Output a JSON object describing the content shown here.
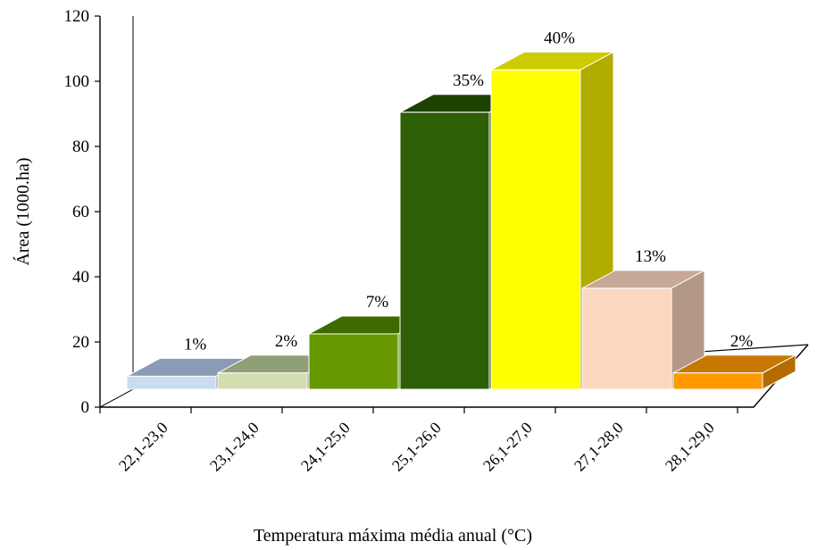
{
  "chart_data": {
    "type": "bar",
    "title": "",
    "xlabel": "Temperatura máxima média anual (°C)",
    "ylabel": "Área (1000.ha)",
    "ylim": [
      0,
      120
    ],
    "yticks": [
      0,
      20,
      40,
      60,
      80,
      100,
      120
    ],
    "grid": false,
    "legend": "none",
    "categories": [
      "22,1-23,0",
      "23,1-24,0",
      "24,1-25,0",
      "25,1-26,0",
      "26,1-27,0",
      "27,1-28,0",
      "28,1-29,0"
    ],
    "values": [
      4,
      5,
      17,
      85,
      98,
      31,
      5
    ],
    "data_labels": [
      "1%",
      "2%",
      "7%",
      "35%",
      "40%",
      "13%",
      "2%"
    ],
    "colors": [
      {
        "front": "#c9dcf0",
        "top": "#8a9cb3",
        "side": "#7f93ab"
      },
      {
        "front": "#d2ddb0",
        "top": "#8f9f78",
        "side": "#86966e"
      },
      {
        "front": "#669900",
        "top": "#3f6a00",
        "side": "#4d7a00"
      },
      {
        "front": "#2e5e05",
        "top": "#1d4200",
        "side": "#244d00"
      },
      {
        "front": "#ffff00",
        "top": "#cccc00",
        "side": "#b0ac00"
      },
      {
        "front": "#fcd7c0",
        "top": "#c7a997",
        "side": "#b39888"
      },
      {
        "front": "#ff9900",
        "top": "#c87800",
        "side": "#b46b00"
      }
    ]
  }
}
